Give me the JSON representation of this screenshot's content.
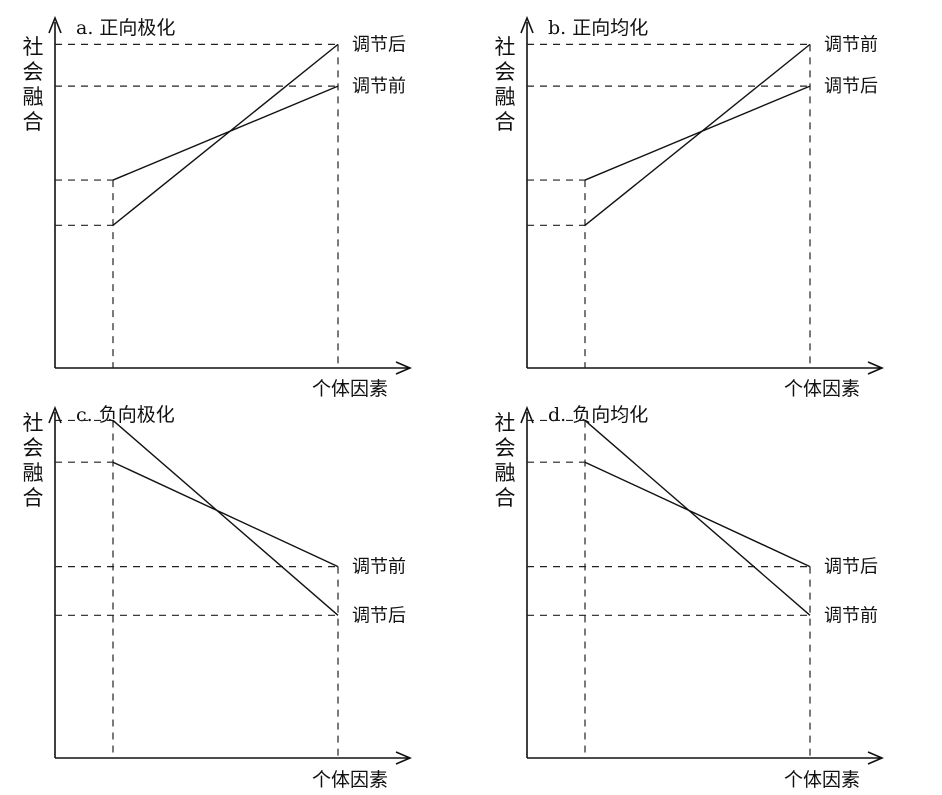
{
  "y_axis_label": "社会融合",
  "x_axis_label": "个体因素",
  "chart_data": [
    {
      "type": "line",
      "title": "a. 正向极化",
      "series": [
        {
          "name": "调节后",
          "values": [
            0.41,
            0.93
          ]
        },
        {
          "name": "调节前",
          "values": [
            0.54,
            0.81
          ]
        }
      ]
    },
    {
      "type": "line",
      "title": "b. 正向均化",
      "series": [
        {
          "name": "调节前",
          "values": [
            0.41,
            0.93
          ]
        },
        {
          "name": "调节后",
          "values": [
            0.54,
            0.81
          ]
        }
      ]
    },
    {
      "type": "line",
      "title": "c. 负向极化",
      "series": [
        {
          "name": "调节前",
          "values": [
            0.85,
            0.55
          ]
        },
        {
          "name": "调节后",
          "values": [
            0.97,
            0.41
          ]
        }
      ]
    },
    {
      "type": "line",
      "title": "d. 负向均化",
      "series": [
        {
          "name": "调节后",
          "values": [
            0.85,
            0.55
          ]
        },
        {
          "name": "调节前",
          "values": [
            0.97,
            0.41
          ]
        }
      ]
    }
  ]
}
